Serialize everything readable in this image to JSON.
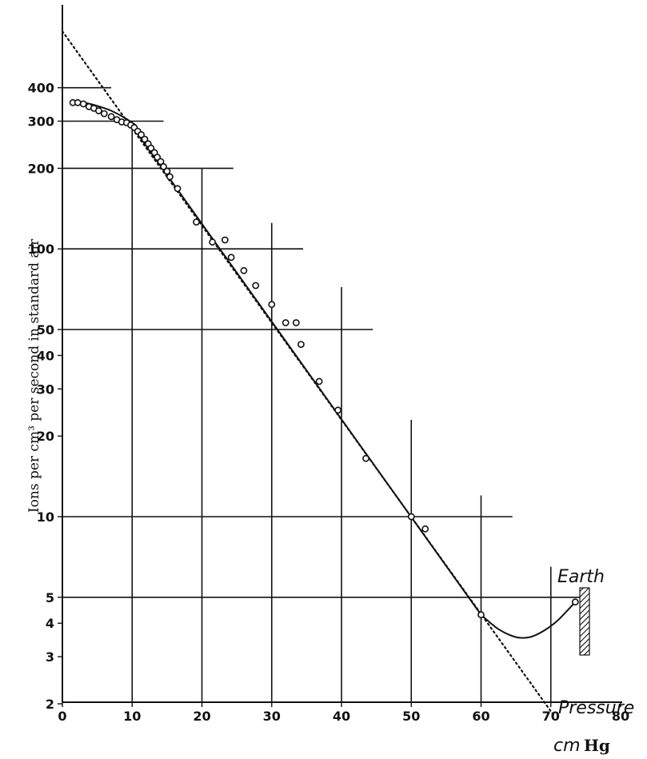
{
  "chart_data": {
    "type": "scatter",
    "title": "",
    "ylabel": "Ions per cm³ per second in standard air",
    "xlabel": "cm Hg",
    "xlabel_parts": {
      "unit": "cm",
      "name": "Hg"
    },
    "x_scale": "linear",
    "y_scale": "log",
    "xlim": [
      0,
      80
    ],
    "ylim": [
      1.8,
      700
    ],
    "x_ticks": [
      0,
      10,
      20,
      30,
      40,
      50,
      60,
      70,
      80
    ],
    "x_tick_labels": [
      "0",
      "10",
      "20",
      "30",
      "40",
      "50",
      "60",
      "70",
      "80"
    ],
    "y_ticks": [
      2,
      3,
      4,
      5,
      10,
      20,
      30,
      40,
      50,
      100,
      200,
      300,
      400
    ],
    "y_tick_labels": [
      "2",
      "3",
      "4",
      "5",
      "10",
      "20",
      "30",
      "40",
      "50",
      "100",
      "200",
      "300",
      "400"
    ],
    "grid": true,
    "annotations": {
      "earth": "Earth",
      "pressure": "Pressure"
    },
    "series": [
      {
        "kind": "points",
        "values_x": [
          1.5,
          2.2,
          3.0,
          3.8,
          4.5,
          5.2,
          6.0,
          7.0,
          7.8,
          8.5,
          9.2,
          9.8,
          10.3,
          10.8,
          11.3,
          11.8,
          12.3,
          12.7,
          13.2,
          13.6,
          14.1,
          14.5,
          15.0,
          15.4,
          16.5,
          19.2,
          21.5,
          23.3,
          24.2,
          26.0,
          27.7,
          30.0,
          32.0,
          33.5,
          34.2,
          36.8,
          39.5,
          43.5,
          50.0,
          52.0,
          60.0,
          73.5
        ],
        "values_y": [
          352,
          352,
          348,
          340,
          335,
          328,
          320,
          312,
          304,
          298,
          296,
          290,
          284,
          275,
          267,
          257,
          247,
          238,
          229,
          220,
          212,
          203,
          195,
          186,
          168,
          126,
          106,
          108,
          93,
          83,
          73,
          62,
          53,
          53,
          44,
          32,
          25,
          16.5,
          10,
          9,
          4.3,
          4.8
        ]
      },
      {
        "kind": "fitted-line",
        "values_x": [
          9.5,
          60.0
        ],
        "values_y": [
          300,
          4.3
        ]
      },
      {
        "kind": "extrapolation-dotted",
        "values_x": [
          0,
          70.5
        ],
        "values_y": [
          650,
          1.8
        ]
      },
      {
        "kind": "earth-curve",
        "values_x": [
          60.0,
          62.5,
          65.0,
          67.0,
          69.0,
          71.0,
          73.5
        ],
        "values_y": [
          4.3,
          3.8,
          3.55,
          3.55,
          3.75,
          4.1,
          4.8
        ]
      },
      {
        "kind": "low-pressure-curve",
        "values_x": [
          1.2,
          3.0,
          5.0,
          7.0,
          9.0,
          10.5
        ],
        "values_y": [
          352,
          352,
          342,
          328,
          308,
          290
        ]
      }
    ]
  }
}
